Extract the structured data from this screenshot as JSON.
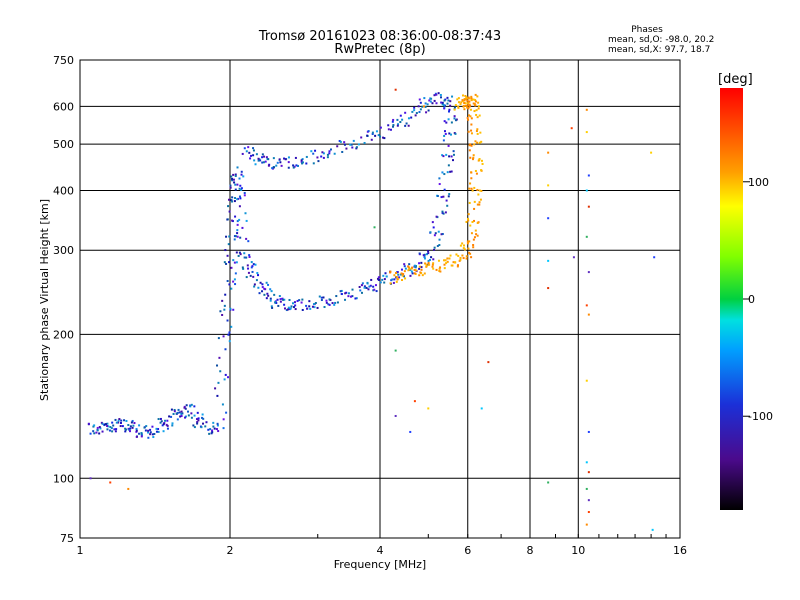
{
  "chart_data": {
    "type": "scatter",
    "title": "Tromsø 20161023 08:36:00-08:37:43",
    "subtitle": "RwPretec (8p)",
    "xlabel": "Frequency [MHz]",
    "ylabel": "Stationary phase Virtual Height [km]",
    "x_scale": "log",
    "y_scale": "log",
    "xlim": [
      1,
      16
    ],
    "ylim": [
      75,
      750
    ],
    "xticks": [
      1,
      2,
      4,
      6,
      8,
      10,
      16
    ],
    "xtick_labels": [
      "1",
      "2",
      "4",
      "6",
      "8",
      "10",
      "16"
    ],
    "yticks": [
      75,
      100,
      200,
      300,
      400,
      500,
      600,
      750
    ],
    "ytick_labels": [
      "75",
      "100",
      "200",
      "300",
      "400",
      "500",
      "600",
      "750"
    ],
    "grid": true,
    "phase_info": {
      "title": "Phases",
      "line_o": "mean, sd,O: -98.0, 20.2",
      "line_x": "mean, sd,X:  97.7, 18.7"
    },
    "colorbar": {
      "label": "[deg]",
      "range": [
        -180,
        180
      ],
      "ticks": [
        100,
        0,
        -100
      ],
      "tick_labels": [
        "100",
        "0",
        "-100"
      ],
      "colormap": "rainbow"
    },
    "series": [
      {
        "mode": "O",
        "phase_deg": -98,
        "color": "#1a4fd8",
        "points": [
          [
            1.05,
            127
          ],
          [
            1.12,
            127
          ],
          [
            1.2,
            130
          ],
          [
            1.28,
            128
          ],
          [
            1.35,
            124
          ],
          [
            1.45,
            128
          ],
          [
            1.55,
            135
          ],
          [
            1.65,
            140
          ],
          [
            1.75,
            130
          ],
          [
            1.9,
            126
          ],
          [
            1.95,
            200
          ],
          [
            2.0,
            260
          ],
          [
            2.02,
            330
          ],
          [
            2.05,
            400
          ],
          [
            2.08,
            440
          ],
          [
            2.12,
            300
          ],
          [
            2.2,
            270
          ],
          [
            2.35,
            245
          ],
          [
            2.5,
            232
          ],
          [
            2.7,
            230
          ],
          [
            3.0,
            232
          ],
          [
            3.3,
            238
          ],
          [
            3.7,
            248
          ],
          [
            4.0,
            258
          ],
          [
            4.4,
            268
          ],
          [
            4.8,
            280
          ],
          [
            5.1,
            300
          ],
          [
            5.3,
            360
          ],
          [
            5.45,
            450
          ],
          [
            5.55,
            550
          ],
          [
            5.5,
            620
          ],
          [
            5.1,
            625
          ],
          [
            4.7,
            580
          ],
          [
            4.2,
            540
          ],
          [
            3.7,
            510
          ],
          [
            3.2,
            485
          ],
          [
            2.8,
            460
          ],
          [
            2.5,
            455
          ],
          [
            2.3,
            460
          ],
          [
            2.15,
            490
          ]
        ]
      },
      {
        "mode": "X",
        "phase_deg": 98,
        "color": "#ffb000",
        "points": [
          [
            4.2,
            262
          ],
          [
            4.6,
            270
          ],
          [
            5.0,
            275
          ],
          [
            5.5,
            282
          ],
          [
            5.9,
            292
          ],
          [
            6.1,
            320
          ],
          [
            6.2,
            380
          ],
          [
            6.25,
            450
          ],
          [
            6.2,
            520
          ],
          [
            6.15,
            600
          ],
          [
            6.1,
            620
          ],
          [
            5.9,
            612
          ],
          [
            5.8,
            600
          ]
        ]
      }
    ],
    "scatter_noise": [
      [
        8.7,
        480
      ],
      [
        8.7,
        410
      ],
      [
        8.7,
        350
      ],
      [
        8.7,
        285
      ],
      [
        8.7,
        250
      ],
      [
        8.7,
        98
      ],
      [
        9.8,
        290
      ],
      [
        9.7,
        540
      ],
      [
        10.4,
        590
      ],
      [
        10.4,
        530
      ],
      [
        10.5,
        430
      ],
      [
        10.4,
        400
      ],
      [
        10.5,
        370
      ],
      [
        10.4,
        320
      ],
      [
        10.5,
        270
      ],
      [
        10.4,
        230
      ],
      [
        10.5,
        220
      ],
      [
        10.4,
        160
      ],
      [
        10.5,
        125
      ],
      [
        10.4,
        108
      ],
      [
        10.5,
        103
      ],
      [
        10.4,
        95
      ],
      [
        10.5,
        90
      ],
      [
        10.5,
        85
      ],
      [
        10.4,
        80
      ],
      [
        14.0,
        480
      ],
      [
        14.2,
        290
      ],
      [
        14.1,
        78
      ],
      [
        4.3,
        650
      ],
      [
        4.3,
        185
      ],
      [
        4.3,
        135
      ],
      [
        4.7,
        145
      ],
      [
        4.9,
        600
      ],
      [
        5.0,
        140
      ],
      [
        4.6,
        125
      ],
      [
        6.4,
        140
      ],
      [
        6.6,
        175
      ],
      [
        3.9,
        335
      ],
      [
        1.05,
        100
      ],
      [
        1.15,
        98
      ],
      [
        1.25,
        95
      ]
    ]
  }
}
